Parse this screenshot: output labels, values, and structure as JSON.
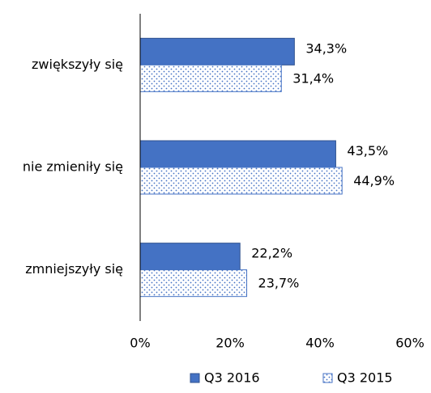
{
  "chart_data": {
    "type": "bar",
    "orientation": "horizontal",
    "categories": [
      "zwiększyły się",
      "nie zmieniły się",
      "zmniejszyły się"
    ],
    "series": [
      {
        "name": "Q3 2016",
        "color": "#4472c4",
        "pattern": "solid",
        "values": [
          34.3,
          43.5,
          22.2
        ],
        "value_labels": [
          "34,3%",
          "43,5%",
          "22,2%"
        ]
      },
      {
        "name": "Q3 2015",
        "color": "#4472c4",
        "pattern": "dotted",
        "values": [
          31.4,
          44.9,
          23.7
        ],
        "value_labels": [
          "31,4%",
          "44,9%",
          "23,7%"
        ]
      }
    ],
    "xlim": [
      0,
      60
    ],
    "xticks": [
      {
        "value": 0,
        "label": "0%"
      },
      {
        "value": 20,
        "label": "20%"
      },
      {
        "value": 40,
        "label": "40%"
      },
      {
        "value": 60,
        "label": "60%"
      }
    ],
    "grid": false,
    "legend": "bottom"
  }
}
